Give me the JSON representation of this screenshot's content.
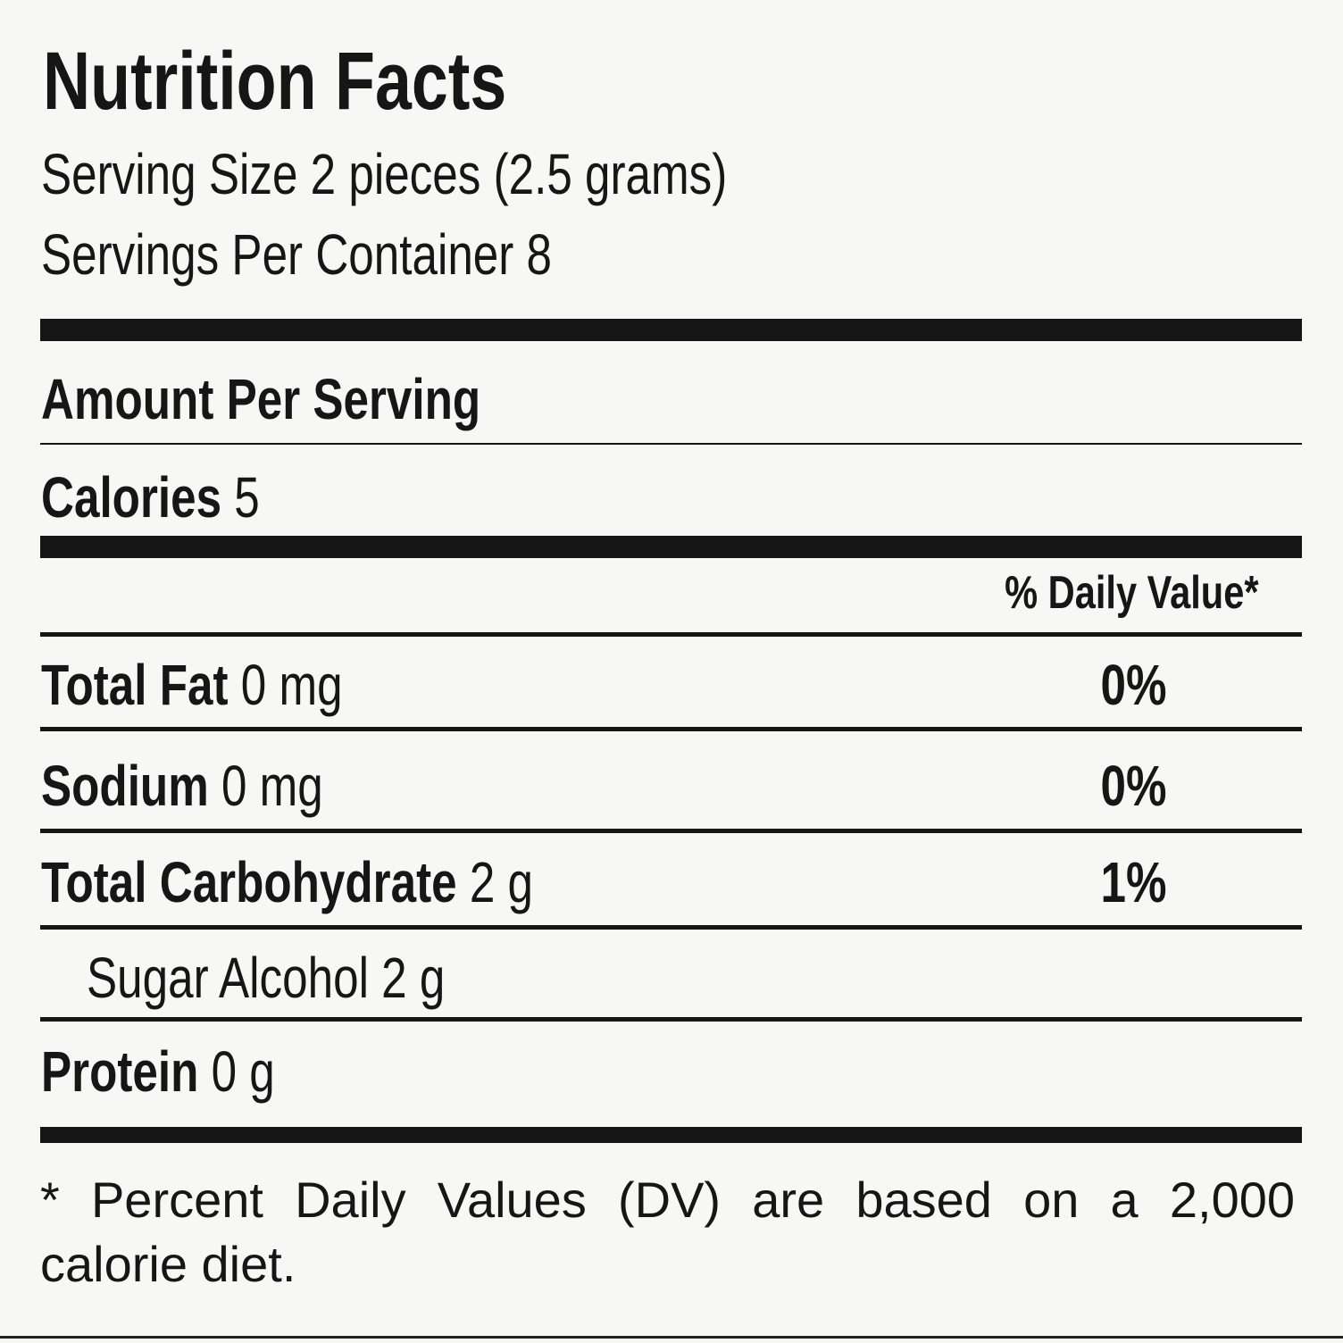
{
  "title": "Nutrition Facts",
  "serving_size": "Serving Size 2 pieces (2.5 grams)",
  "servings_per_container": "Servings Per Container 8",
  "amount_per_serving": "Amount Per Serving",
  "calories": {
    "label": "Calories",
    "value": "5"
  },
  "daily_value_header": "% Daily Value*",
  "nutrients": [
    {
      "name": "Total Fat",
      "amount": "0 mg",
      "dv": "0%"
    },
    {
      "name": "Sodium",
      "amount": "0 mg",
      "dv": "0%"
    },
    {
      "name": "Total Carbohydrate",
      "amount": "2 g",
      "dv": "1%"
    },
    {
      "name": "Sugar Alcohol",
      "amount": "2 g"
    },
    {
      "name": "Protein",
      "amount": "0 g"
    }
  ],
  "footnote": "* Percent Daily Values (DV) are based on a 2,000 calorie diet."
}
